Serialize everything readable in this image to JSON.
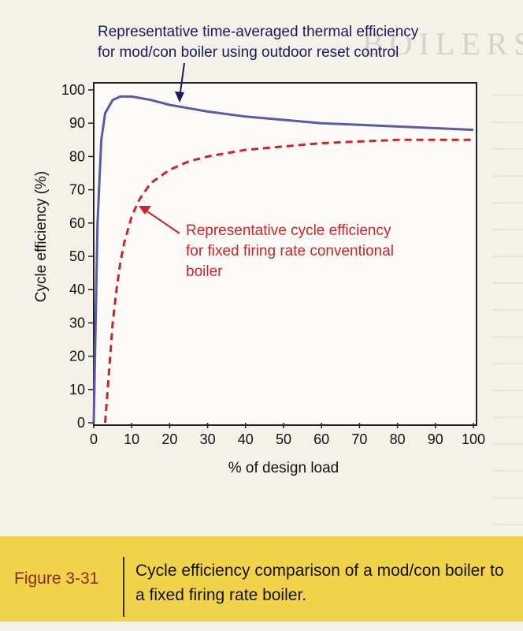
{
  "page": {
    "header": "BOILERS",
    "figure_number": "Figure 3-31",
    "caption": "Cycle efficiency comparison of a mod/con boiler to a fixed firing rate boiler."
  },
  "colors": {
    "modcon_line": "#5a5aa8",
    "fixed_line": "#c8262c",
    "caption_band": "#f1d34a",
    "figure_number": "#8b2a20"
  },
  "chart_data": {
    "type": "line",
    "title": "",
    "xlabel": "% of design load",
    "ylabel": "Cycle efficiency (%)",
    "xlim": [
      0,
      100
    ],
    "ylim": [
      0,
      100
    ],
    "xticks": [
      0,
      10,
      20,
      30,
      40,
      50,
      60,
      70,
      80,
      90,
      100
    ],
    "yticks": [
      0,
      10,
      20,
      30,
      40,
      50,
      60,
      70,
      80,
      90,
      100
    ],
    "grid": false,
    "series": [
      {
        "name": "mod/con boiler using outdoor reset control",
        "style": "solid",
        "annotation": "Representative time-averaged thermal efficiency for mod/con boiler using outdoor reset control",
        "x": [
          0,
          0.5,
          1,
          2,
          3,
          5,
          7,
          10,
          15,
          20,
          25,
          30,
          40,
          50,
          60,
          70,
          80,
          90,
          100
        ],
        "y": [
          0,
          30,
          60,
          85,
          93,
          97,
          98,
          98,
          97,
          95.5,
          94.5,
          93.5,
          92,
          91,
          90,
          89.5,
          89,
          88.5,
          88
        ]
      },
      {
        "name": "fixed firing rate conventional boiler",
        "style": "dashed",
        "annotation": "Representative cycle efficiency for fixed firing rate conventional boiler",
        "x": [
          3,
          4,
          5,
          6,
          7,
          8,
          10,
          12,
          15,
          20,
          25,
          30,
          40,
          50,
          60,
          70,
          80,
          90,
          100
        ],
        "y": [
          0,
          15,
          30,
          40,
          48,
          54,
          62,
          67,
          72,
          76,
          78.5,
          80,
          82,
          83,
          84,
          84.5,
          85,
          85,
          85
        ]
      }
    ]
  }
}
